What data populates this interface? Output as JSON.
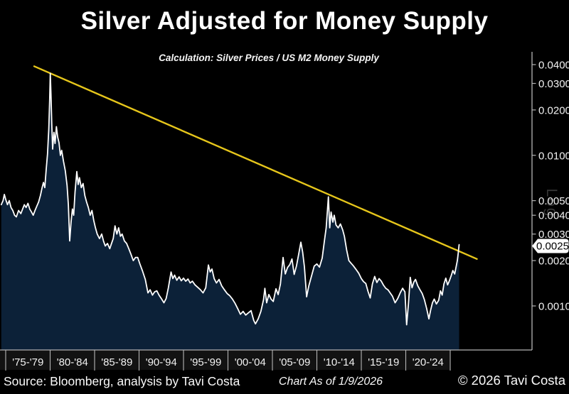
{
  "header": {
    "title": "Silver Adjusted for Money Supply",
    "subtitle": "Calculation: Silver Prices / US M2 Money Supply"
  },
  "footer": {
    "source": "Source: Bloomberg, analysis by Tavi Costa",
    "as_of": "Chart As of 1/9/2026",
    "copyright": "© 2026 Tavi Costa"
  },
  "chart_data": {
    "type": "area",
    "scale": "log",
    "title": "Silver Adjusted for Money Supply",
    "subtitle": "Calculation: Silver Prices / US M2 Money Supply",
    "grid": false,
    "legend": "none",
    "x_axis": {
      "tick_years": [
        1975,
        1980,
        1985,
        1990,
        1995,
        2000,
        2005,
        2010,
        2015,
        2020,
        2025
      ],
      "band_labels": [
        "'75-'79",
        "'80-'84",
        "'85-'89",
        "'90-'94",
        "'95-'99",
        "'00-'04",
        "'05-'09",
        "'10-'14",
        "'15-'19",
        "'20-'24"
      ],
      "xlim_years": [
        1974.5,
        2034
      ]
    },
    "y_axis": {
      "side": "right",
      "scale_note": "Log",
      "ticks": [
        0.04,
        0.03,
        0.02,
        0.01,
        0.005,
        0.004,
        0.003,
        0.002,
        0.001
      ],
      "tick_labels": [
        "0.0400",
        "0.0300",
        "0.0200",
        "0.0100",
        "0.0050",
        "0.0040",
        "0.0030",
        "0.0020",
        "0.0010"
      ],
      "ylim": [
        0.0005,
        0.048
      ]
    },
    "last_value": {
      "label": "0.0025",
      "value": 0.0025
    },
    "trendline": {
      "name": "Descending resistance connecting 1980 and 2011 peaks",
      "points": [
        [
          1978.2,
          0.039
        ],
        [
          2028.0,
          0.00205
        ]
      ]
    },
    "series": [
      {
        "name": "Silver Prices / US M2 Money Supply",
        "points": [
          [
            1974.5,
            0.0047
          ],
          [
            1974.7,
            0.005
          ],
          [
            1974.85,
            0.0055
          ],
          [
            1975.0,
            0.0051
          ],
          [
            1975.2,
            0.0047
          ],
          [
            1975.4,
            0.005
          ],
          [
            1975.6,
            0.0045
          ],
          [
            1975.8,
            0.0043
          ],
          [
            1976.0,
            0.004
          ],
          [
            1976.2,
            0.0039
          ],
          [
            1976.45,
            0.0043
          ],
          [
            1976.7,
            0.0041
          ],
          [
            1976.9,
            0.0044
          ],
          [
            1977.1,
            0.0047
          ],
          [
            1977.3,
            0.0045
          ],
          [
            1977.5,
            0.0048
          ],
          [
            1977.7,
            0.0044
          ],
          [
            1977.9,
            0.0042
          ],
          [
            1978.1,
            0.004
          ],
          [
            1978.3,
            0.0043
          ],
          [
            1978.5,
            0.0046
          ],
          [
            1978.7,
            0.0049
          ],
          [
            1978.9,
            0.0054
          ],
          [
            1979.1,
            0.0061
          ],
          [
            1979.25,
            0.0066
          ],
          [
            1979.4,
            0.0061
          ],
          [
            1979.55,
            0.008
          ],
          [
            1979.7,
            0.0102
          ],
          [
            1979.85,
            0.015
          ],
          [
            1979.95,
            0.024
          ],
          [
            1980.02,
            0.035
          ],
          [
            1980.1,
            0.025
          ],
          [
            1980.18,
            0.016
          ],
          [
            1980.28,
            0.011
          ],
          [
            1980.42,
            0.0142
          ],
          [
            1980.55,
            0.012
          ],
          [
            1980.7,
            0.0155
          ],
          [
            1980.85,
            0.0132
          ],
          [
            1981.0,
            0.0121
          ],
          [
            1981.15,
            0.01
          ],
          [
            1981.3,
            0.0108
          ],
          [
            1981.5,
            0.0091
          ],
          [
            1981.7,
            0.0079
          ],
          [
            1981.9,
            0.0063
          ],
          [
            1982.05,
            0.0047
          ],
          [
            1982.2,
            0.0027
          ],
          [
            1982.35,
            0.0036
          ],
          [
            1982.5,
            0.0044
          ],
          [
            1982.65,
            0.004
          ],
          [
            1982.8,
            0.0057
          ],
          [
            1983.0,
            0.0078
          ],
          [
            1983.15,
            0.0064
          ],
          [
            1983.3,
            0.0071
          ],
          [
            1983.5,
            0.0061
          ],
          [
            1983.7,
            0.0065
          ],
          [
            1983.9,
            0.0054
          ],
          [
            1984.1,
            0.0049
          ],
          [
            1984.3,
            0.0045
          ],
          [
            1984.5,
            0.004
          ],
          [
            1984.7,
            0.0043
          ],
          [
            1984.9,
            0.0037
          ],
          [
            1985.1,
            0.0033
          ],
          [
            1985.3,
            0.003
          ],
          [
            1985.55,
            0.0028
          ],
          [
            1985.8,
            0.003
          ],
          [
            1986.0,
            0.0027
          ],
          [
            1986.2,
            0.0025
          ],
          [
            1986.45,
            0.0026
          ],
          [
            1986.7,
            0.0024
          ],
          [
            1986.9,
            0.0026
          ],
          [
            1987.1,
            0.0028
          ],
          [
            1987.3,
            0.0034
          ],
          [
            1987.5,
            0.003
          ],
          [
            1987.7,
            0.0033
          ],
          [
            1987.9,
            0.0029
          ],
          [
            1988.1,
            0.003
          ],
          [
            1988.35,
            0.0027
          ],
          [
            1988.6,
            0.0026
          ],
          [
            1988.85,
            0.0024
          ],
          [
            1989.1,
            0.0022
          ],
          [
            1989.35,
            0.002
          ],
          [
            1989.6,
            0.0021
          ],
          [
            1989.85,
            0.0021
          ],
          [
            1990.1,
            0.0019
          ],
          [
            1990.4,
            0.0017
          ],
          [
            1990.7,
            0.0015
          ],
          [
            1991.0,
            0.00122
          ],
          [
            1991.25,
            0.00128
          ],
          [
            1991.5,
            0.00118
          ],
          [
            1991.75,
            0.00124
          ],
          [
            1992.0,
            0.00126
          ],
          [
            1992.25,
            0.00118
          ],
          [
            1992.5,
            0.00112
          ],
          [
            1992.8,
            0.00105
          ],
          [
            1993.05,
            0.00112
          ],
          [
            1993.3,
            0.00132
          ],
          [
            1993.6,
            0.00168
          ],
          [
            1993.8,
            0.00152
          ],
          [
            1994.0,
            0.0016
          ],
          [
            1994.25,
            0.00148
          ],
          [
            1994.5,
            0.00156
          ],
          [
            1994.75,
            0.00147
          ],
          [
            1995.0,
            0.00153
          ],
          [
            1995.25,
            0.00146
          ],
          [
            1995.5,
            0.00151
          ],
          [
            1995.75,
            0.00142
          ],
          [
            1996.0,
            0.00146
          ],
          [
            1996.3,
            0.00138
          ],
          [
            1996.6,
            0.00133
          ],
          [
            1996.9,
            0.00128
          ],
          [
            1997.2,
            0.00122
          ],
          [
            1997.5,
            0.00132
          ],
          [
            1997.8,
            0.00187
          ],
          [
            1998.0,
            0.00168
          ],
          [
            1998.2,
            0.00176
          ],
          [
            1998.45,
            0.00152
          ],
          [
            1998.7,
            0.00142
          ],
          [
            1999.0,
            0.0015
          ],
          [
            1999.3,
            0.00136
          ],
          [
            1999.6,
            0.00128
          ],
          [
            1999.9,
            0.00121
          ],
          [
            2000.2,
            0.00117
          ],
          [
            2000.5,
            0.00111
          ],
          [
            2000.8,
            0.00104
          ],
          [
            2001.1,
            0.00096
          ],
          [
            2001.4,
            0.00088
          ],
          [
            2001.7,
            0.00092
          ],
          [
            2002.0,
            0.00087
          ],
          [
            2002.3,
            0.0009
          ],
          [
            2002.6,
            0.00093
          ],
          [
            2002.9,
            0.0008
          ],
          [
            2003.1,
            0.00076
          ],
          [
            2003.4,
            0.00082
          ],
          [
            2003.7,
            0.00092
          ],
          [
            2004.0,
            0.0011
          ],
          [
            2004.15,
            0.00131
          ],
          [
            2004.35,
            0.00105
          ],
          [
            2004.6,
            0.00119
          ],
          [
            2004.85,
            0.00111
          ],
          [
            2005.1,
            0.00107
          ],
          [
            2005.4,
            0.0013
          ],
          [
            2005.65,
            0.00119
          ],
          [
            2005.9,
            0.0014
          ],
          [
            2006.2,
            0.0021
          ],
          [
            2006.45,
            0.00163
          ],
          [
            2006.7,
            0.0018
          ],
          [
            2006.95,
            0.00188
          ],
          [
            2007.2,
            0.00205
          ],
          [
            2007.45,
            0.00162
          ],
          [
            2007.7,
            0.00184
          ],
          [
            2007.95,
            0.0022
          ],
          [
            2008.2,
            0.00265
          ],
          [
            2008.4,
            0.00228
          ],
          [
            2008.6,
            0.00182
          ],
          [
            2008.85,
            0.00115
          ],
          [
            2009.1,
            0.00136
          ],
          [
            2009.4,
            0.00158
          ],
          [
            2009.7,
            0.00184
          ],
          [
            2010.0,
            0.0019
          ],
          [
            2010.3,
            0.00181
          ],
          [
            2010.6,
            0.00208
          ],
          [
            2010.85,
            0.0027
          ],
          [
            2011.05,
            0.0033
          ],
          [
            2011.2,
            0.0044
          ],
          [
            2011.3,
            0.0053
          ],
          [
            2011.45,
            0.0033
          ],
          [
            2011.6,
            0.0042
          ],
          [
            2011.8,
            0.0036
          ],
          [
            2011.95,
            0.004
          ],
          [
            2012.15,
            0.00345
          ],
          [
            2012.4,
            0.0033
          ],
          [
            2012.65,
            0.0035
          ],
          [
            2012.9,
            0.0032
          ],
          [
            2013.1,
            0.0029
          ],
          [
            2013.35,
            0.00235
          ],
          [
            2013.6,
            0.002
          ],
          [
            2013.85,
            0.00192
          ],
          [
            2014.1,
            0.00185
          ],
          [
            2014.4,
            0.00175
          ],
          [
            2014.7,
            0.00165
          ],
          [
            2015.0,
            0.00152
          ],
          [
            2015.25,
            0.00145
          ],
          [
            2015.5,
            0.00141
          ],
          [
            2015.75,
            0.00125
          ],
          [
            2016.0,
            0.00113
          ],
          [
            2016.25,
            0.0014
          ],
          [
            2016.5,
            0.00157
          ],
          [
            2016.75,
            0.00143
          ],
          [
            2017.0,
            0.00152
          ],
          [
            2017.25,
            0.00146
          ],
          [
            2017.5,
            0.00137
          ],
          [
            2017.75,
            0.00131
          ],
          [
            2018.0,
            0.00128
          ],
          [
            2018.25,
            0.00122
          ],
          [
            2018.5,
            0.00116
          ],
          [
            2018.8,
            0.00105
          ],
          [
            2019.1,
            0.00112
          ],
          [
            2019.4,
            0.00123
          ],
          [
            2019.65,
            0.00131
          ],
          [
            2019.9,
            0.00124
          ],
          [
            2020.1,
            0.00075
          ],
          [
            2020.3,
            0.00102
          ],
          [
            2020.5,
            0.00155
          ],
          [
            2020.7,
            0.00132
          ],
          [
            2020.9,
            0.00144
          ],
          [
            2021.1,
            0.0015
          ],
          [
            2021.35,
            0.00136
          ],
          [
            2021.6,
            0.00128
          ],
          [
            2021.85,
            0.00121
          ],
          [
            2022.1,
            0.0011
          ],
          [
            2022.35,
            0.00096
          ],
          [
            2022.6,
            0.00082
          ],
          [
            2022.8,
            0.00094
          ],
          [
            2023.0,
            0.00105
          ],
          [
            2023.2,
            0.00111
          ],
          [
            2023.45,
            0.00103
          ],
          [
            2023.7,
            0.00109
          ],
          [
            2023.9,
            0.00126
          ],
          [
            2024.1,
            0.00118
          ],
          [
            2024.3,
            0.0014
          ],
          [
            2024.5,
            0.00153
          ],
          [
            2024.7,
            0.00138
          ],
          [
            2024.9,
            0.00147
          ],
          [
            2025.1,
            0.00158
          ],
          [
            2025.3,
            0.00172
          ],
          [
            2025.5,
            0.00163
          ],
          [
            2025.65,
            0.0018
          ],
          [
            2025.8,
            0.002
          ],
          [
            2025.9,
            0.00225
          ],
          [
            2026.0,
            0.00255
          ]
        ]
      }
    ],
    "colors": {
      "background": "#000000",
      "area_fill": "#0c2138",
      "price_line": "#ffffff",
      "trendline": "#e6c61b",
      "axis": "#b5b5b5",
      "tick_label": "#f2f2f2",
      "xstrip_bg": "#121212",
      "callout_bg": "#ffffff",
      "callout_text": "#000000",
      "watermark": "#5a5a5a"
    }
  }
}
